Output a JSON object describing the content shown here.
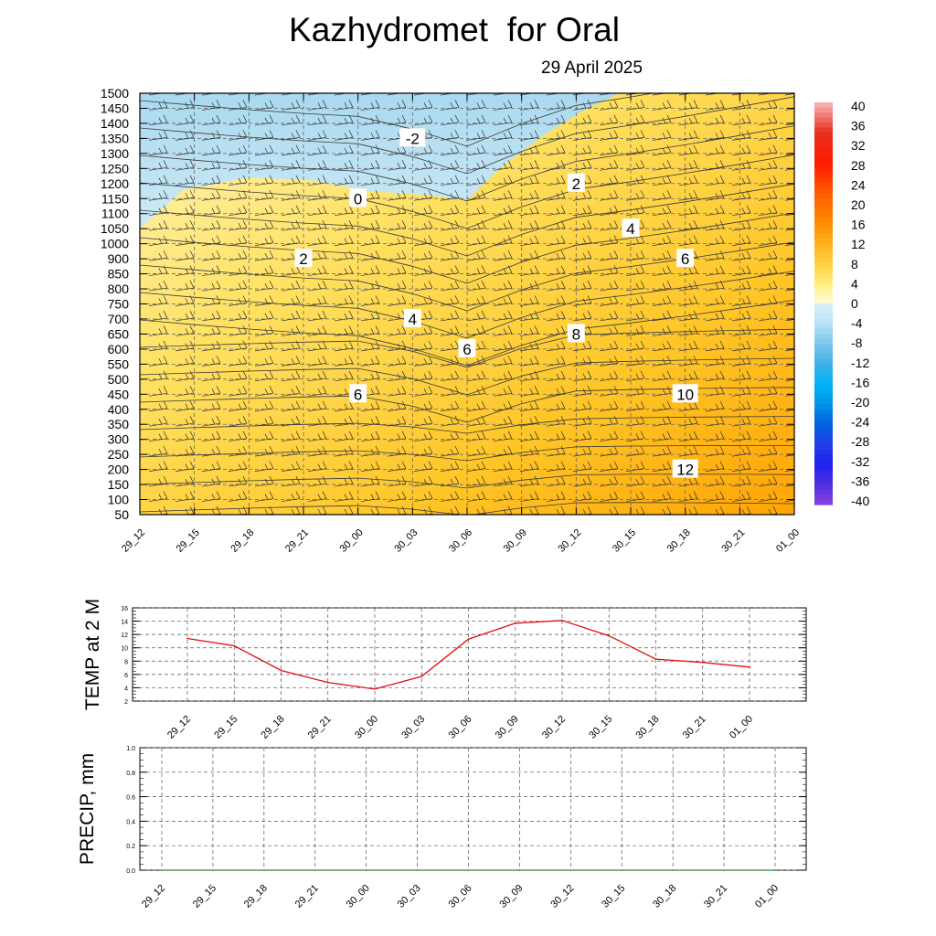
{
  "header": {
    "title": "Kazhydromet  for Oral",
    "date": "29 April 2025"
  },
  "time_labels": [
    "29_12",
    "29_15",
    "29_18",
    "29_21",
    "30_00",
    "30_03",
    "30_06",
    "30_09",
    "30_12",
    "30_15",
    "30_18",
    "30_21",
    "01_00"
  ],
  "chart_data": [
    {
      "type": "heatmap",
      "title": "",
      "xlabel": "",
      "ylabel": "",
      "x_categories": [
        "29_12",
        "29_15",
        "29_18",
        "29_21",
        "30_00",
        "30_03",
        "30_06",
        "30_09",
        "30_12",
        "30_15",
        "30_18",
        "30_21",
        "01_00"
      ],
      "y_levels": [
        "50",
        "100",
        "150",
        "200",
        "250",
        "300",
        "350",
        "400",
        "450",
        "500",
        "550",
        "600",
        "650",
        "700",
        "750",
        "800",
        "850",
        "900",
        "1000",
        "1050",
        "1100",
        "1150",
        "1200",
        "1250",
        "1300",
        "1350",
        "1400",
        "1450",
        "1500"
      ],
      "colorbar": {
        "labels": [
          "40",
          "36",
          "32",
          "28",
          "24",
          "20",
          "16",
          "12",
          "8",
          "4",
          "0",
          "-4",
          "-8",
          "-12",
          "-16",
          "-20",
          "-24",
          "-28",
          "-32",
          "-36",
          "-40"
        ]
      },
      "contour_labels": [
        {
          "text": "-2",
          "x_time": "30_03",
          "y_level": "1350"
        },
        {
          "text": "0",
          "x_time": "30_00",
          "y_level": "1150"
        },
        {
          "text": "2",
          "x_time": "30_12",
          "y_level": "1200"
        },
        {
          "text": "4",
          "x_time": "30_15",
          "y_level": "1050"
        },
        {
          "text": "2",
          "x_time": "29_21",
          "y_level": "900"
        },
        {
          "text": "6",
          "x_time": "30_18",
          "y_level": "900"
        },
        {
          "text": "4",
          "x_time": "30_03",
          "y_level": "700"
        },
        {
          "text": "8",
          "x_time": "30_12",
          "y_level": "650"
        },
        {
          "text": "6",
          "x_time": "30_06",
          "y_level": "600"
        },
        {
          "text": "10",
          "x_time": "30_18",
          "y_level": "450"
        },
        {
          "text": "6",
          "x_time": "30_00",
          "y_level": "450"
        },
        {
          "text": "12",
          "x_time": "30_18",
          "y_level": "200"
        }
      ],
      "zero_isotherm_start_level": "1050"
    },
    {
      "type": "line",
      "title": "",
      "ylabel": "TEMP at 2 M",
      "categories": [
        "29_12",
        "29_15",
        "29_18",
        "29_21",
        "30_00",
        "30_03",
        "30_06",
        "30_09",
        "30_12",
        "30_15",
        "30_18",
        "30_21",
        "01_00"
      ],
      "series": [
        {
          "values": [
            11.4,
            10.3,
            6.6,
            4.8,
            3.8,
            5.7,
            11.3,
            13.7,
            14.1,
            11.8,
            8.3,
            7.8,
            7.1
          ],
          "color": "#e01010"
        }
      ],
      "ylim": [
        2,
        16
      ],
      "yticks": [
        "2",
        "4",
        "6",
        "8",
        "10",
        "12",
        "14",
        "16"
      ],
      "grid": true
    },
    {
      "type": "line",
      "title": "",
      "ylabel": "PRECIP, mm",
      "categories": [
        "29_12",
        "29_15",
        "29_18",
        "29_21",
        "30_00",
        "30_03",
        "30_06",
        "30_09",
        "30_12",
        "30_15",
        "30_18",
        "30_21",
        "01_00"
      ],
      "series": [
        {
          "values": [
            0,
            0,
            0,
            0,
            0,
            0,
            0,
            0,
            0,
            0,
            0,
            0,
            0
          ],
          "color": "#2e8b2e"
        }
      ],
      "ylim": [
        0,
        1
      ],
      "yticks": [
        "0.0",
        "0.2",
        "0.4",
        "0.6",
        "0.8",
        "1.0"
      ],
      "grid": true
    }
  ]
}
